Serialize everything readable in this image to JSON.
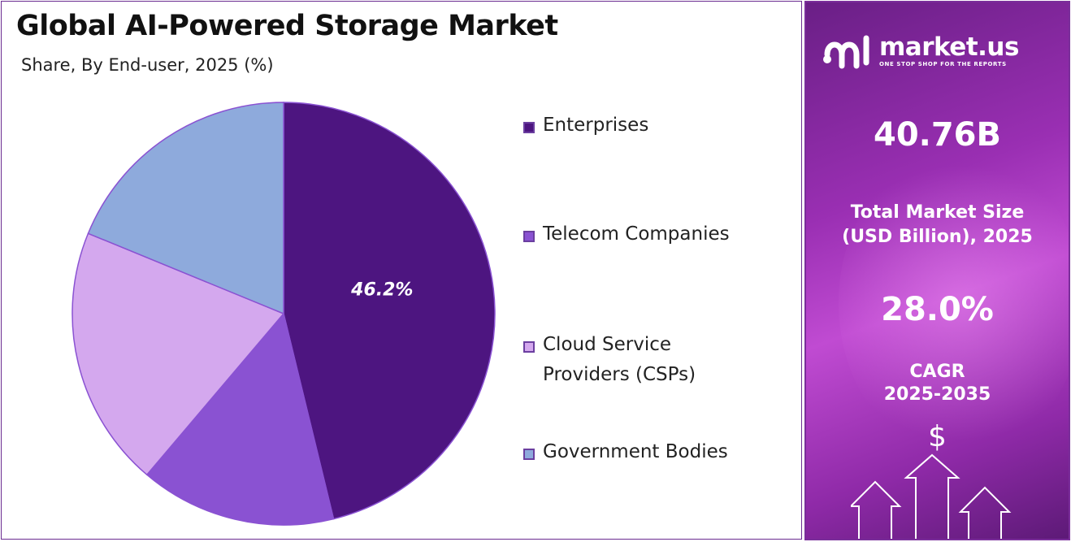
{
  "title": "Global AI-Powered Storage Market",
  "subtitle": "Share, By End-user, 2025 (%)",
  "chart_data": {
    "type": "pie",
    "title": "Global AI-Powered Storage Market",
    "subtitle": "Share, By End-user, 2025 (%)",
    "categories": [
      "Enterprises",
      "Telecom Companies",
      "Cloud Service Providers (CSPs)",
      "Government Bodies"
    ],
    "values": [
      46.2,
      15.0,
      20.0,
      18.8
    ],
    "colors": [
      "#4d1580",
      "#8a52d2",
      "#d4a8ee",
      "#8eaadc"
    ],
    "data_labels": [
      "46.2%",
      "",
      "",
      ""
    ],
    "legend_position": "right"
  },
  "legend": {
    "items": [
      {
        "lines": [
          "Enterprises"
        ],
        "color": "#4d1580"
      },
      {
        "lines": [
          "Telecom Companies"
        ],
        "color": "#8a52d2"
      },
      {
        "lines": [
          "Cloud Service",
          "Providers (CSPs)"
        ],
        "color": "#d4a8ee"
      },
      {
        "lines": [
          "Government Bodies"
        ],
        "color": "#8eaadc"
      }
    ]
  },
  "sidebar": {
    "brand_name": "market.us",
    "brand_tagline": "ONE STOP SHOP FOR THE REPORTS",
    "market_size_value": "40.76B",
    "market_size_label_1": "Total Market Size",
    "market_size_label_2": "(USD Billion), 2025",
    "cagr_value": "28.0%",
    "cagr_label_1": "CAGR",
    "cagr_label_2": "2025-2035",
    "dollar_symbol": "$",
    "icons": [
      "market-us-logo-icon",
      "dollar-sign-icon",
      "up-arrow-icon"
    ],
    "background_color": "#9a2fb3"
  }
}
